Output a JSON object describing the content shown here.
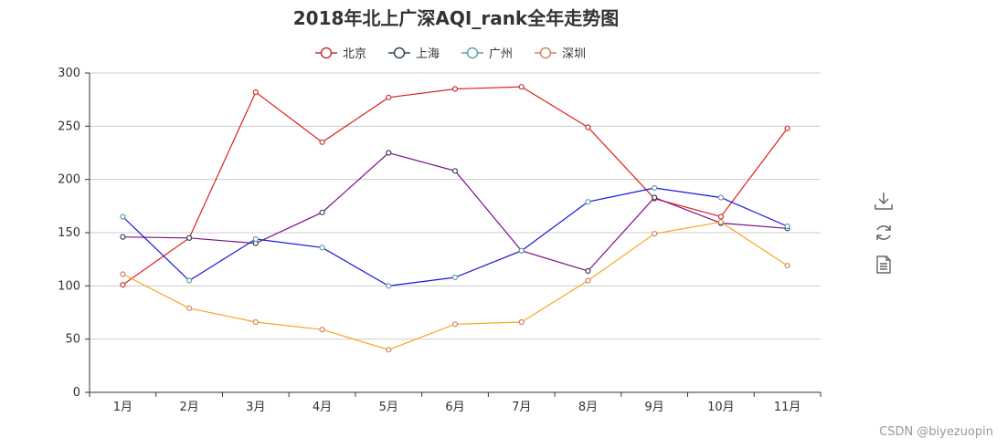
{
  "chart_data": {
    "type": "line",
    "title": "2018年北上广深AQI_rank全年走势图",
    "categories": [
      "1月",
      "2月",
      "3月",
      "4月",
      "5月",
      "6月",
      "7月",
      "8月",
      "9月",
      "10月",
      "11月"
    ],
    "ylim": [
      0,
      300
    ],
    "yticks": [
      0,
      50,
      100,
      150,
      200,
      250,
      300
    ],
    "grid": "horizontal",
    "legend_position": "top-center",
    "series": [
      {
        "name": "北京",
        "legend_color": "#c23531",
        "line_color": "#e01e1e",
        "values": [
          101,
          145,
          282,
          235,
          277,
          285,
          287,
          249,
          182,
          165,
          248
        ]
      },
      {
        "name": "上海",
        "legend_color": "#2f4554",
        "line_color": "#7b0e8a",
        "values": [
          146,
          145,
          140,
          169,
          225,
          208,
          133,
          114,
          183,
          159,
          154
        ]
      },
      {
        "name": "广州",
        "legend_color": "#61a0a8",
        "line_color": "#1515d9",
        "values": [
          165,
          105,
          144,
          136,
          100,
          108,
          133,
          179,
          192,
          183,
          156
        ]
      },
      {
        "name": "深圳",
        "legend_color": "#d48265",
        "line_color": "#f5a623",
        "values": [
          111,
          79,
          66,
          59,
          40,
          64,
          66,
          105,
          149,
          160,
          119
        ]
      }
    ]
  },
  "toolbox": {
    "items": [
      {
        "name": "save-image-icon"
      },
      {
        "name": "restore-icon"
      },
      {
        "name": "data-view-icon"
      }
    ]
  },
  "watermark": "CSDN @biyezuopin"
}
